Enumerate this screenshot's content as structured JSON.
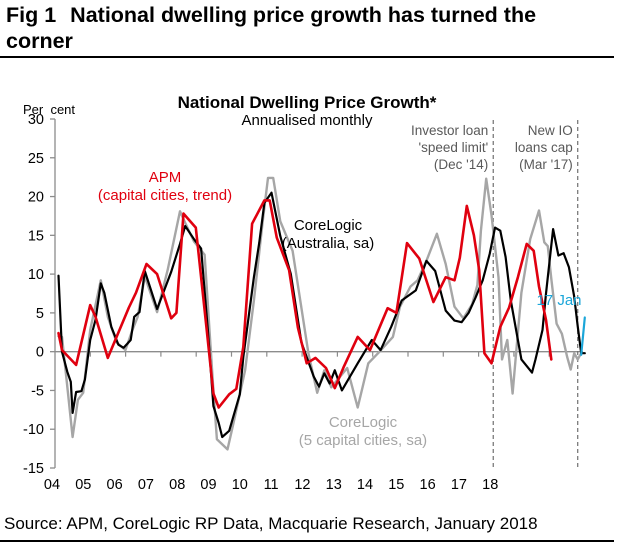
{
  "figure": {
    "number": "Fig 1",
    "title": "National dwelling price growth has turned the corner",
    "source": "Source: APM, CoreLogic RP Data, Macquarie Research, January 2018"
  },
  "colors": {
    "apm": "#e0000f",
    "corelogic_aus": "#000000",
    "corelogic_5cap": "#a6a6a6",
    "latest": "#1ba6d9",
    "axis": "#8c8c8c",
    "event_line": "#707070",
    "annotation_text": "#595959"
  },
  "chart_data": {
    "type": "line",
    "title": "National Dwelling Price Growth*",
    "subtitle": "Annualised monthly",
    "ylabel": "Per  cent",
    "xlabel": "",
    "ylim": [
      -15,
      30
    ],
    "yticks": [
      30,
      25,
      20,
      15,
      10,
      5,
      0,
      -5,
      -10,
      -15
    ],
    "xlim": [
      2004,
      2019
    ],
    "xtick_labels": [
      "04",
      "05",
      "06",
      "07",
      "08",
      "09",
      "10",
      "11",
      "12",
      "13",
      "14",
      "15",
      "16",
      "17",
      "18"
    ],
    "grid": false,
    "legend": "inline-labels",
    "series": [
      {
        "name": "APM (capital cities, trend)",
        "label_lines": [
          "APM",
          "(capital cities, trend)"
        ],
        "color_key": "apm",
        "x": [
          2004.1,
          2004.2,
          2004.6,
          2005.0,
          2005.15,
          2005.5,
          2006.1,
          2006.3,
          2006.6,
          2006.9,
          2007.3,
          2007.45,
          2007.65,
          2008.0,
          2008.3,
          2008.5,
          2008.65,
          2008.95,
          2009.15,
          2009.35,
          2009.6,
          2009.95,
          2010.1,
          2010.3,
          2010.65,
          2010.9,
          2011.15,
          2011.4,
          2011.7,
          2011.95,
          2012.2,
          2012.6,
          2012.95,
          2013.45,
          2013.7,
          2014.0,
          2014.35,
          2014.75,
          2015.1,
          2015.35,
          2015.5,
          2015.7,
          2015.9,
          2016.05,
          2016.2,
          2016.4,
          2016.65,
          2016.9,
          2017.15,
          2017.4,
          2017.6,
          2017.75,
          2017.95,
          2018.1
        ],
        "values": [
          2.4,
          0.2,
          -1.7,
          6.0,
          4.5,
          -0.8,
          5.7,
          7.6,
          11.3,
          10.0,
          4.3,
          5.0,
          17.8,
          16.0,
          3.2,
          -5.4,
          -7.2,
          -5.5,
          -4.8,
          0.6,
          16.5,
          19.5,
          19.5,
          14.7,
          10.5,
          3.1,
          -1.5,
          -0.8,
          -2.1,
          -4.7,
          -2.0,
          1.9,
          0.2,
          5.6,
          5.0,
          14.0,
          12.0,
          6.4,
          9.6,
          9.2,
          12.1,
          18.8,
          15.0,
          10.5,
          -0.2,
          -1.5,
          3.2,
          5.7,
          9.6,
          13.9,
          13.0,
          8.4,
          4.1,
          -1.0
        ]
      },
      {
        "name": "CoreLogic (Australia, sa)",
        "label_lines": [
          "CoreLogic",
          "(Australia, sa)"
        ],
        "color_key": "corelogic_aus",
        "x": [
          2004.1,
          2004.2,
          2004.35,
          2004.45,
          2004.5,
          2004.6,
          2004.75,
          2004.85,
          2005.0,
          2005.15,
          2005.3,
          2005.4,
          2005.6,
          2005.8,
          2005.95,
          2006.15,
          2006.25,
          2006.4,
          2006.55,
          2006.9,
          2007.3,
          2007.55,
          2007.7,
          2007.95,
          2008.15,
          2008.35,
          2008.5,
          2008.65,
          2008.75,
          2008.95,
          2009.25,
          2009.35,
          2009.65,
          2009.8,
          2009.95,
          2010.15,
          2010.4,
          2010.7,
          2011.0,
          2011.35,
          2011.5,
          2011.65,
          2011.8,
          2011.95,
          2012.15,
          2012.6,
          2013.0,
          2013.25,
          2013.55,
          2013.85,
          2014.25,
          2014.55,
          2014.8,
          2015.1,
          2015.35,
          2015.55,
          2015.75,
          2015.95,
          2016.15,
          2016.35,
          2016.5,
          2016.65,
          2016.8,
          2016.95,
          2017.25,
          2017.55,
          2017.65,
          2017.85,
          2017.95,
          2018.15,
          2018.3,
          2018.45,
          2018.6,
          2018.75,
          2018.85,
          2018.95,
          2019.05
        ],
        "values": [
          9.8,
          0.0,
          -2.6,
          -3.9,
          -7.9,
          -5.2,
          -5.1,
          -3.6,
          1.5,
          4.1,
          8.8,
          7.6,
          3.2,
          0.9,
          0.5,
          1.5,
          4.5,
          5.1,
          10.4,
          5.5,
          10.3,
          13.9,
          16.2,
          14.5,
          13.3,
          2.4,
          -7.0,
          -9.2,
          -11.0,
          -10.2,
          -5.5,
          -0.7,
          9.6,
          14.0,
          19.2,
          20.5,
          14.9,
          10.0,
          1.2,
          -3.2,
          -4.5,
          -2.8,
          -4.1,
          -2.4,
          -5.0,
          -1.5,
          1.5,
          0.2,
          3.2,
          6.6,
          7.9,
          11.7,
          10.4,
          5.3,
          4.0,
          3.8,
          5.0,
          7.0,
          9.2,
          12.6,
          16.0,
          15.6,
          12.2,
          6.6,
          -1.0,
          -2.7,
          -1.0,
          2.8,
          7.5,
          15.8,
          12.4,
          12.7,
          10.9,
          7.1,
          3.3,
          -0.2,
          -0.2
        ]
      },
      {
        "name": "CoreLogic (5 capital cities, sa)",
        "label_lines": [
          "CoreLogic",
          "(5 capital cities, sa)"
        ],
        "color_key": "corelogic_5cap",
        "x": [
          2004.1,
          2004.2,
          2004.35,
          2004.5,
          2004.65,
          2004.8,
          2005.0,
          2005.3,
          2005.5,
          2005.75,
          2006.0,
          2006.2,
          2006.35,
          2006.55,
          2006.9,
          2007.2,
          2007.55,
          2007.7,
          2007.95,
          2008.25,
          2008.5,
          2008.6,
          2008.9,
          2009.05,
          2009.4,
          2009.65,
          2009.9,
          2010.05,
          2010.2,
          2010.4,
          2010.75,
          2011.2,
          2011.45,
          2011.65,
          2011.85,
          2012.3,
          2012.6,
          2012.9,
          2013.2,
          2013.6,
          2013.8,
          2014.1,
          2014.3,
          2014.55,
          2014.85,
          2015.1,
          2015.35,
          2015.6,
          2015.85,
          2016.0,
          2016.1,
          2016.25,
          2016.4,
          2016.6,
          2016.7,
          2016.85,
          2017.0,
          2017.1,
          2017.25,
          2017.5,
          2017.75,
          2017.9,
          2018.0,
          2018.1,
          2018.25,
          2018.4,
          2018.55,
          2018.65,
          2018.75,
          2018.85,
          2018.95
        ],
        "values": [
          2.0,
          1.9,
          -4.5,
          -11.0,
          -6.2,
          -5.3,
          2.8,
          9.2,
          4.5,
          1.2,
          0.2,
          2.8,
          4.5,
          9.7,
          5.1,
          10.5,
          18.1,
          16.6,
          14.2,
          12.5,
          -5.0,
          -11.3,
          -12.6,
          -9.6,
          -2.4,
          6.6,
          16.8,
          22.4,
          22.4,
          16.8,
          13.0,
          -0.2,
          -5.3,
          -2.4,
          -4.6,
          -2.1,
          -7.2,
          -1.5,
          -0.1,
          1.9,
          5.8,
          8.4,
          9.2,
          11.7,
          15.2,
          11.3,
          5.8,
          4.3,
          6.1,
          8.6,
          15.6,
          22.3,
          17.6,
          9.6,
          -1.0,
          1.5,
          -5.4,
          -0.2,
          7.6,
          14.5,
          18.2,
          14.1,
          13.6,
          9.4,
          3.6,
          2.3,
          -0.7,
          -2.3,
          -0.2,
          -1.0,
          -0.2
        ]
      },
      {
        "name": "Latest (17 Jan)",
        "label_lines": [
          "17 Jan"
        ],
        "color_key": "latest",
        "x": [
          2018.95,
          2019.05
        ],
        "values": [
          -0.4,
          4.4
        ]
      }
    ],
    "annotations": [
      {
        "lines": [
          "Investor loan",
          "'speed limit'",
          "(Dec '14)"
        ],
        "x": 2016.45,
        "kind": "vertical-dashed"
      },
      {
        "lines": [
          "New IO",
          "loans cap",
          "(Mar '17)"
        ],
        "x": 2018.85,
        "kind": "vertical-dashed"
      }
    ]
  }
}
